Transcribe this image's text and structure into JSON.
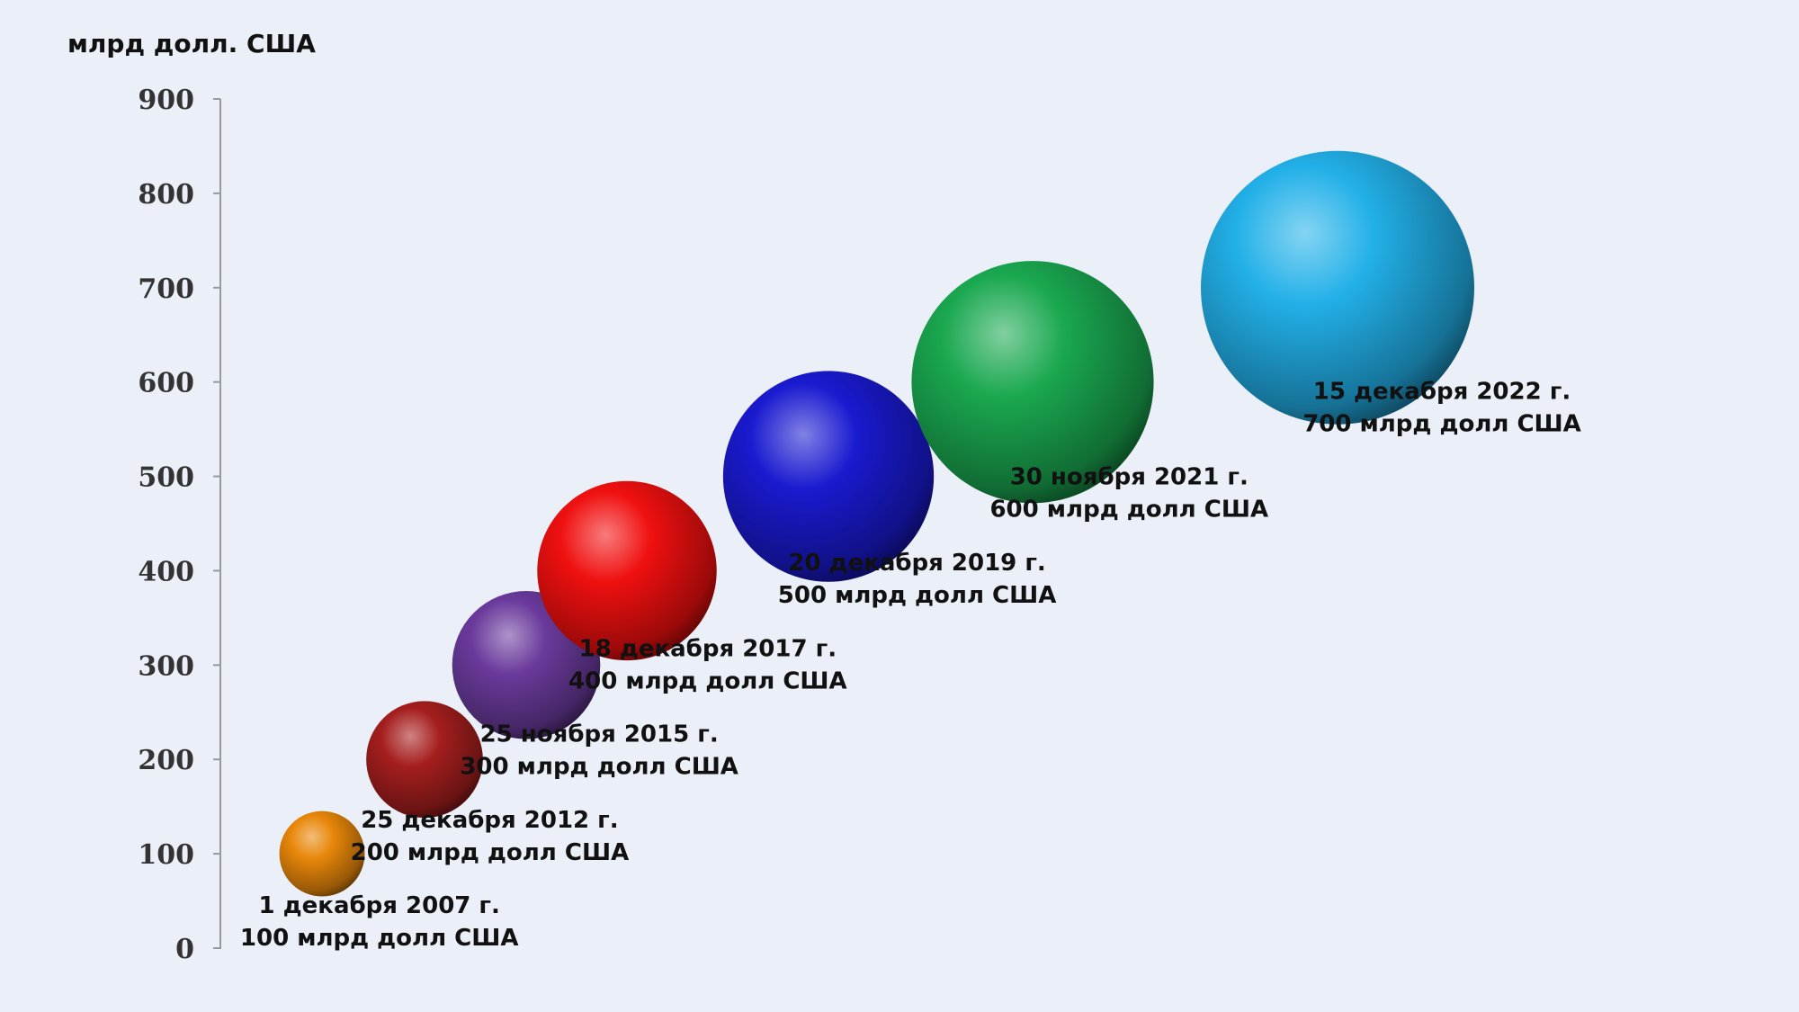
{
  "chart_data": {
    "type": "scatter",
    "title": "",
    "ylabel": "млрд долл. США",
    "xlabel": "",
    "ylim": [
      0,
      900
    ],
    "yticks": [
      0,
      100,
      200,
      300,
      400,
      500,
      600,
      700,
      800,
      900
    ],
    "grid": false,
    "legend": "none",
    "points": [
      {
        "date": "1 декабря 2007 г.",
        "value": 100,
        "label": "100 млрд долл США",
        "color": "#e8870a"
      },
      {
        "date": "25 декабря 2012 г.",
        "value": 200,
        "label": "200 млрд долл США",
        "color": "#a51e1e"
      },
      {
        "date": "25 ноября 2015 г.",
        "value": 300,
        "label": "300 млрд долл США",
        "color": "#6a3a9c"
      },
      {
        "date": "18 декабря 2017 г.",
        "value": 400,
        "label": "400 млрд долл США",
        "color": "#f01010"
      },
      {
        "date": "20 декабря 2019 г.",
        "value": 500,
        "label": "500 млрд долл США",
        "color": "#1a1ad0"
      },
      {
        "date": "30 ноября 2021 г.",
        "value": 600,
        "label": "600 млрд долл США",
        "color": "#1aa850"
      },
      {
        "date": "15 декабря 2022 г.",
        "value": 700,
        "label": "700 млрд долл США",
        "color": "#22b0e8"
      }
    ]
  }
}
